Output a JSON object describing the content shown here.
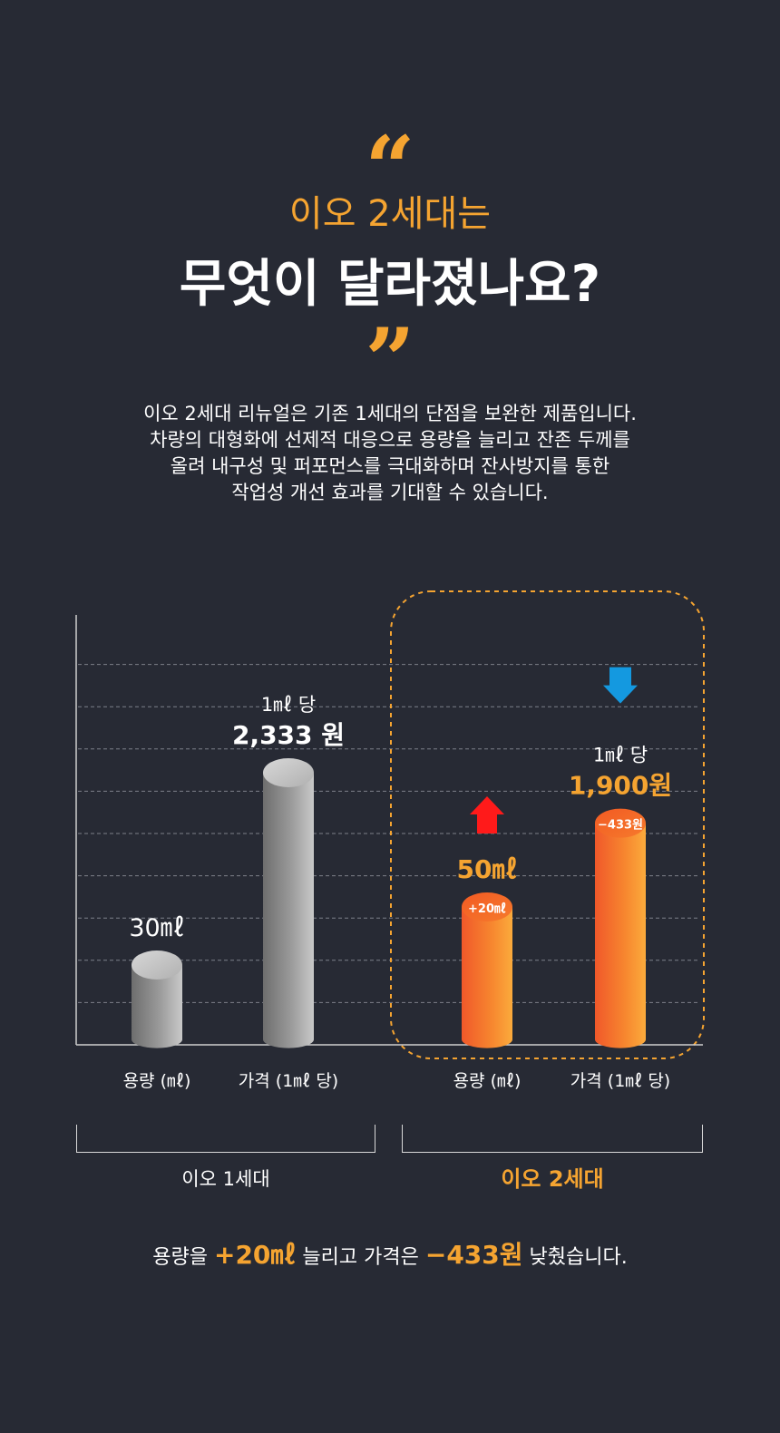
{
  "header": {
    "quote_open": "“",
    "headline_accent": "이오 2세대는",
    "headline_main": "무엇이 달라졌나요?",
    "quote_close": "”"
  },
  "intro": {
    "lines": [
      "이오 2세대 리뉴얼은 기존 1세대의 단점을 보완한 제품입니다.",
      "차량의 대형화에 선제적 대응으로 용량을 늘리고 잔존 두께를",
      "올려 내구성 및 퍼포먼스를 극대화하며 잔사방지를 통한",
      "작업성 개선 효과를 기대할 수 있습니다."
    ]
  },
  "chart_data": {
    "type": "bar",
    "categories": [
      "용량 (㎖)",
      "가격 (1㎖ 당)",
      "용량 (㎖)",
      "가격 (1㎖ 당)"
    ],
    "values": [
      30,
      2333,
      50,
      1900
    ],
    "bar_labels": [
      {
        "top": "",
        "main": "30㎖"
      },
      {
        "top": "1㎖ 당",
        "main": "2,333 원"
      },
      {
        "top": "",
        "main": "50㎖"
      },
      {
        "top": "1㎖ 당",
        "main": "1,900원"
      }
    ],
    "cap_badges": [
      "",
      "",
      "+20㎖",
      "−433원"
    ],
    "arrows": [
      "",
      "",
      "up",
      "down"
    ],
    "groups": [
      {
        "label": "이오 1세대",
        "bars": [
          0,
          1
        ]
      },
      {
        "label": "이오 2세대",
        "bars": [
          2,
          3
        ],
        "highlighted": true
      }
    ],
    "grid": true,
    "colors": {
      "gen1": "#b3b3b3",
      "gen2": "#f7a23a",
      "accent": "#f5a431",
      "up_arrow": "#ff1a1a",
      "down_arrow": "#1499e0"
    }
  },
  "summary": {
    "prefix": "용량을",
    "volume_delta": "+20㎖",
    "middle": "늘리고 가격은",
    "price_delta": "−433원",
    "suffix": "낮췄습니다."
  }
}
